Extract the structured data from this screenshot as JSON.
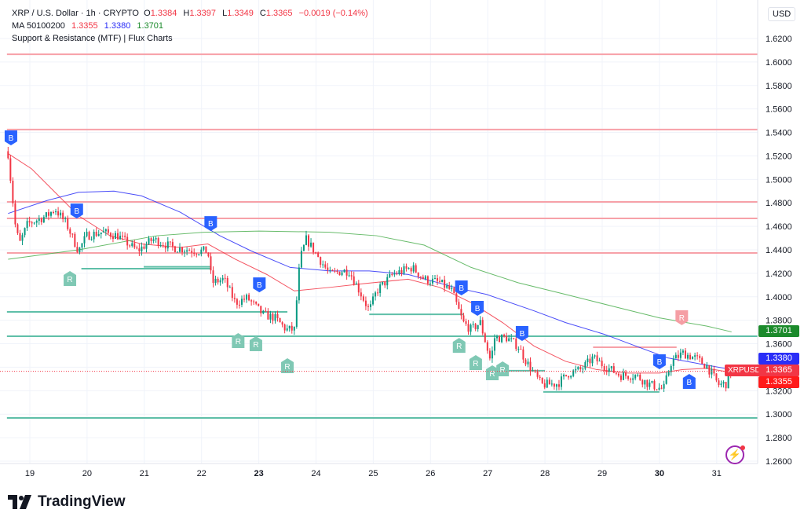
{
  "legend": {
    "symbol_line": "XRP / U.S. Dollar · 1h · CRYPTO",
    "o_label": "O",
    "o": "1.3384",
    "h_label": "H",
    "h": "1.3397",
    "l_label": "L",
    "l": "1.3349",
    "c_label": "C",
    "c": "1.3365",
    "change": "−0.0019 (−0.14%)",
    "ma_label": "MA 50100200",
    "ma50": "1.3355",
    "ma100": "1.3380",
    "ma200": "1.3701",
    "indicator": "Support & Resistance (MTF) | Flux Charts"
  },
  "currency": "USD",
  "badges": {
    "ma200": "1.3701",
    "ma100": "1.3380",
    "symbol": "XRPUSD",
    "last": "1.3365",
    "ma50": "1.3355"
  },
  "brand": "TradingView",
  "icons": [
    "tradingview-logo-icon",
    "lightning-icon"
  ],
  "colors": {
    "up": "#089981",
    "down": "#f23645",
    "ma50": "#f23645",
    "ma100": "#2a2ef7",
    "ma200": "#4caf50",
    "support": "#5fbfa8",
    "resistance": "#f7a1a8",
    "buy_marker": "#2962ff",
    "r_marker": "#7fc8b4"
  },
  "chart_data": {
    "type": "candlestick",
    "interval": "1h",
    "x_ticks": [
      "19",
      "20",
      "21",
      "22",
      "23",
      "24",
      "25",
      "26",
      "27",
      "28",
      "29",
      "30",
      "31"
    ],
    "y_ticks": [
      "1.6200",
      "1.6000",
      "1.5800",
      "1.5600",
      "1.5400",
      "1.5200",
      "1.5000",
      "1.4800",
      "1.4600",
      "1.4400",
      "1.4200",
      "1.4000",
      "1.3800",
      "1.3600",
      "1.3400",
      "1.3200",
      "1.3000",
      "1.2800",
      "1.2600"
    ],
    "ylim": [
      1.256,
      1.635
    ],
    "xlim": [
      18.5,
      31.75
    ],
    "grid": true,
    "last_price": 1.3365,
    "price_path": [
      [
        18.62,
        1.522
      ],
      [
        18.68,
        1.492
      ],
      [
        18.75,
        1.459
      ],
      [
        18.82,
        1.445
      ],
      [
        18.96,
        1.462
      ],
      [
        19.3,
        1.469
      ],
      [
        19.44,
        1.475
      ],
      [
        19.64,
        1.462
      ],
      [
        19.85,
        1.439
      ],
      [
        19.99,
        1.452
      ],
      [
        20.26,
        1.455
      ],
      [
        20.54,
        1.452
      ],
      [
        20.88,
        1.439
      ],
      [
        21.15,
        1.449
      ],
      [
        21.5,
        1.442
      ],
      [
        21.91,
        1.439
      ],
      [
        22.11,
        1.439
      ],
      [
        22.18,
        1.412
      ],
      [
        22.39,
        1.415
      ],
      [
        22.59,
        1.395
      ],
      [
        22.8,
        1.399
      ],
      [
        23.07,
        1.385
      ],
      [
        23.28,
        1.382
      ],
      [
        23.48,
        1.372
      ],
      [
        23.62,
        1.372
      ],
      [
        23.72,
        1.432
      ],
      [
        23.83,
        1.449
      ],
      [
        23.97,
        1.439
      ],
      [
        24.24,
        1.419
      ],
      [
        24.45,
        1.422
      ],
      [
        24.58,
        1.422
      ],
      [
        24.79,
        1.402
      ],
      [
        24.93,
        1.388
      ],
      [
        25.06,
        1.405
      ],
      [
        25.34,
        1.419
      ],
      [
        25.68,
        1.425
      ],
      [
        25.89,
        1.415
      ],
      [
        26.16,
        1.412
      ],
      [
        26.37,
        1.405
      ],
      [
        26.57,
        1.378
      ],
      [
        26.71,
        1.372
      ],
      [
        26.87,
        1.378
      ],
      [
        27.05,
        1.345
      ],
      [
        27.12,
        1.365
      ],
      [
        27.33,
        1.365
      ],
      [
        27.53,
        1.358
      ],
      [
        27.67,
        1.345
      ],
      [
        27.94,
        1.325
      ],
      [
        28.22,
        1.326
      ],
      [
        28.42,
        1.335
      ],
      [
        28.63,
        1.338
      ],
      [
        28.84,
        1.348
      ],
      [
        29.04,
        1.341
      ],
      [
        29.32,
        1.333
      ],
      [
        29.59,
        1.333
      ],
      [
        29.8,
        1.326
      ],
      [
        30.07,
        1.321
      ],
      [
        30.21,
        1.345
      ],
      [
        30.41,
        1.352
      ],
      [
        30.62,
        1.348
      ],
      [
        30.83,
        1.341
      ],
      [
        31.03,
        1.325
      ],
      [
        31.17,
        1.326
      ],
      [
        31.26,
        1.3365
      ]
    ],
    "moving_averages": [
      {
        "name": "MA 50",
        "color": "#f23645",
        "points": [
          [
            18.62,
            1.522
          ],
          [
            19.03,
            1.509
          ],
          [
            19.44,
            1.489
          ],
          [
            19.85,
            1.469
          ],
          [
            20.4,
            1.452
          ],
          [
            20.95,
            1.445
          ],
          [
            21.63,
            1.442
          ],
          [
            22.11,
            1.445
          ],
          [
            22.59,
            1.432
          ],
          [
            23.14,
            1.419
          ],
          [
            23.62,
            1.405
          ],
          [
            24.24,
            1.408
          ],
          [
            24.79,
            1.411
          ],
          [
            25.61,
            1.415
          ],
          [
            26.16,
            1.408
          ],
          [
            26.71,
            1.395
          ],
          [
            27.26,
            1.378
          ],
          [
            27.81,
            1.358
          ],
          [
            28.36,
            1.345
          ],
          [
            28.9,
            1.338
          ],
          [
            29.45,
            1.335
          ],
          [
            30.0,
            1.335
          ],
          [
            30.41,
            1.338
          ],
          [
            30.83,
            1.339
          ],
          [
            31.26,
            1.3355
          ]
        ]
      },
      {
        "name": "MA 100",
        "color": "#2a2ef7",
        "points": [
          [
            18.62,
            1.471
          ],
          [
            19.3,
            1.482
          ],
          [
            19.85,
            1.489
          ],
          [
            20.47,
            1.49
          ],
          [
            20.95,
            1.486
          ],
          [
            21.63,
            1.472
          ],
          [
            22.32,
            1.452
          ],
          [
            22.87,
            1.439
          ],
          [
            23.55,
            1.425
          ],
          [
            24.24,
            1.422
          ],
          [
            24.93,
            1.422
          ],
          [
            25.61,
            1.419
          ],
          [
            26.43,
            1.408
          ],
          [
            26.98,
            1.402
          ],
          [
            27.81,
            1.388
          ],
          [
            28.36,
            1.378
          ],
          [
            29.04,
            1.368
          ],
          [
            29.59,
            1.358
          ],
          [
            30.14,
            1.348
          ],
          [
            30.69,
            1.343
          ],
          [
            31.26,
            1.338
          ]
        ]
      },
      {
        "name": "MA 200",
        "color": "#4caf50",
        "points": [
          [
            18.62,
            1.432
          ],
          [
            19.85,
            1.44
          ],
          [
            21.22,
            1.452
          ],
          [
            22.05,
            1.455
          ],
          [
            23.01,
            1.456
          ],
          [
            24.24,
            1.455
          ],
          [
            25.06,
            1.452
          ],
          [
            25.89,
            1.444
          ],
          [
            26.71,
            1.425
          ],
          [
            27.53,
            1.412
          ],
          [
            28.36,
            1.402
          ],
          [
            29.18,
            1.392
          ],
          [
            30.0,
            1.382
          ],
          [
            30.83,
            1.375
          ],
          [
            31.26,
            1.3701
          ]
        ]
      }
    ],
    "levels": [
      {
        "kind": "resistance",
        "price": 1.6065,
        "from": 18.6,
        "to": 31.75
      },
      {
        "kind": "resistance",
        "price": 1.5425,
        "from": 18.6,
        "to": 31.75
      },
      {
        "kind": "resistance",
        "price": 1.4808,
        "from": 18.6,
        "to": 31.75
      },
      {
        "kind": "resistance",
        "price": 1.4668,
        "from": 18.6,
        "to": 31.75
      },
      {
        "kind": "resistance",
        "price": 1.4373,
        "from": 18.6,
        "to": 31.75
      },
      {
        "kind": "support",
        "price": 1.3871,
        "from": 18.6,
        "to": 23.5
      },
      {
        "kind": "support",
        "price": 1.3664,
        "from": 18.6,
        "to": 31.75
      },
      {
        "kind": "support",
        "price": 1.2968,
        "from": 18.6,
        "to": 31.75
      },
      {
        "kind": "support",
        "price": 1.4239,
        "from": 19.9,
        "to": 22.15
      },
      {
        "kind": "support",
        "price": 1.4255,
        "from": 20.99,
        "to": 22.15
      },
      {
        "kind": "support",
        "price": 1.385,
        "from": 24.93,
        "to": 26.57
      },
      {
        "kind": "support",
        "price": 1.337,
        "from": 27.05,
        "to": 28.0
      },
      {
        "kind": "support",
        "price": 1.319,
        "from": 27.97,
        "to": 30.0
      },
      {
        "kind": "resistance",
        "price": 1.357,
        "from": 28.84,
        "to": 30.3
      }
    ],
    "markers": [
      {
        "label": "B",
        "kind": "buy",
        "dir": "down",
        "day": 18.67,
        "price": 1.5357
      },
      {
        "label": "B",
        "kind": "buy",
        "dir": "down",
        "day": 19.82,
        "price": 1.4734
      },
      {
        "label": "B",
        "kind": "buy",
        "dir": "down",
        "day": 22.16,
        "price": 1.4627
      },
      {
        "label": "B",
        "kind": "buy",
        "dir": "down",
        "day": 23.01,
        "price": 1.4105
      },
      {
        "label": "B",
        "kind": "buy",
        "dir": "down",
        "day": 26.54,
        "price": 1.4079
      },
      {
        "label": "B",
        "kind": "buy",
        "dir": "down",
        "day": 26.82,
        "price": 1.3905
      },
      {
        "label": "B",
        "kind": "buy",
        "dir": "down",
        "day": 27.6,
        "price": 1.3691
      },
      {
        "label": "B",
        "kind": "buy",
        "dir": "down",
        "day": 30.0,
        "price": 1.345
      },
      {
        "label": "B",
        "kind": "buy",
        "dir": "up",
        "day": 30.52,
        "price": 1.3276
      },
      {
        "label": "R",
        "kind": "retest",
        "dir": "up",
        "day": 19.7,
        "price": 1.4152
      },
      {
        "label": "R",
        "kind": "retest",
        "dir": "up",
        "day": 22.64,
        "price": 1.3624
      },
      {
        "label": "R",
        "kind": "retest",
        "dir": "up",
        "day": 22.95,
        "price": 1.3597
      },
      {
        "label": "R",
        "kind": "retest",
        "dir": "up",
        "day": 23.5,
        "price": 1.341
      },
      {
        "label": "R",
        "kind": "retest",
        "dir": "up",
        "day": 26.5,
        "price": 1.3583
      },
      {
        "label": "R",
        "kind": "retest",
        "dir": "up",
        "day": 26.79,
        "price": 1.3436
      },
      {
        "label": "R",
        "kind": "retest",
        "dir": "up",
        "day": 27.08,
        "price": 1.3349
      },
      {
        "label": "R",
        "kind": "retest",
        "dir": "up",
        "day": 27.26,
        "price": 1.3383
      },
      {
        "label": "R",
        "kind": "retest-resistance",
        "dir": "down",
        "day": 30.39,
        "price": 1.3825
      }
    ]
  }
}
